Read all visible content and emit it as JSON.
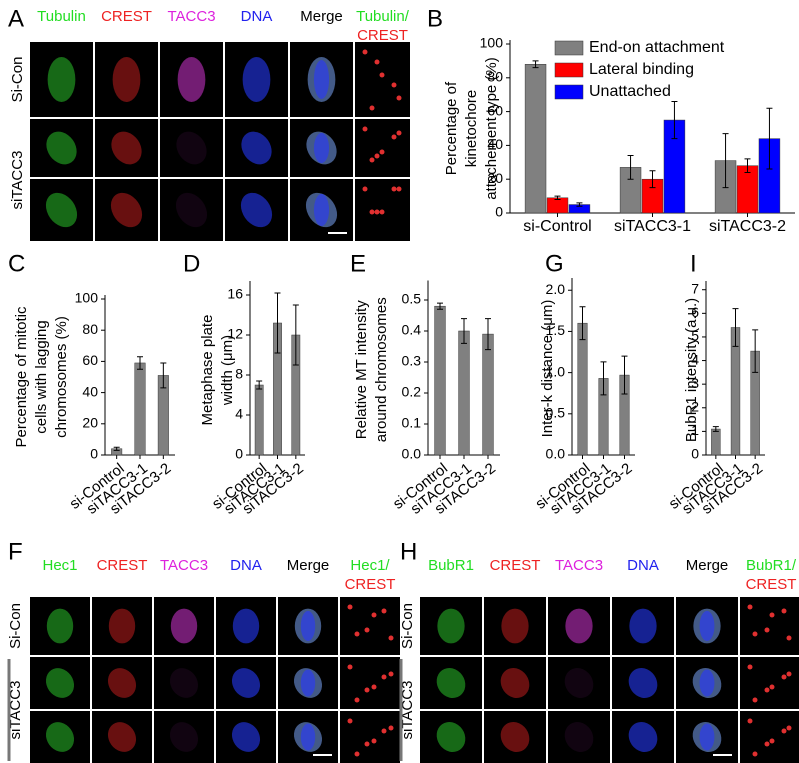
{
  "images": [
    {
      "panel": "A",
      "channels": [
        {
          "text": "Tubulin",
          "color": "#22dd22"
        },
        {
          "text": "CREST",
          "color": "#ee2222"
        },
        {
          "text": "TACC3",
          "color": "#dd22dd"
        },
        {
          "text": "DNA",
          "color": "#2222ee"
        },
        {
          "text": "Merge",
          "color": "#000000"
        }
      ],
      "overlay": [
        {
          "text": "Tubulin/",
          "color": "#22dd22"
        },
        {
          "text": "CREST",
          "color": "#ee2222"
        }
      ],
      "rows": [
        "Si-Con",
        "siTACC3"
      ]
    },
    {
      "panel": "F",
      "channels": [
        {
          "text": "Hec1",
          "color": "#22dd22"
        },
        {
          "text": "CREST",
          "color": "#ee2222"
        },
        {
          "text": "TACC3",
          "color": "#dd22dd"
        },
        {
          "text": "DNA",
          "color": "#2222ee"
        },
        {
          "text": "Merge",
          "color": "#000000"
        }
      ],
      "overlay": [
        {
          "text": "Hec1/",
          "color": "#22dd22"
        },
        {
          "text": "CREST",
          "color": "#ee2222"
        }
      ],
      "rows": [
        "Si-Con",
        "siTACC3"
      ]
    },
    {
      "panel": "H",
      "channels": [
        {
          "text": "BubR1",
          "color": "#22dd22"
        },
        {
          "text": "CREST",
          "color": "#ee2222"
        },
        {
          "text": "TACC3",
          "color": "#dd22dd"
        },
        {
          "text": "DNA",
          "color": "#2222ee"
        },
        {
          "text": "Merge",
          "color": "#000000"
        }
      ],
      "overlay": [
        {
          "text": "BubR1/",
          "color": "#22dd22"
        },
        {
          "text": "CREST",
          "color": "#ee2222"
        }
      ],
      "rows": [
        "Si-Con",
        "siTACC3"
      ]
    }
  ],
  "chart_data": [
    {
      "type": "bar",
      "panel": "B",
      "ylabel": [
        "Percentage of",
        "kinetochore",
        "attachement type (%)"
      ],
      "categories": [
        "si-Control",
        "siTACC3-1",
        "siTACC3-2"
      ],
      "series": [
        {
          "name": "End-on attachment",
          "color": "#808080",
          "values": [
            88,
            27,
            31
          ],
          "errors": [
            2,
            7,
            16
          ]
        },
        {
          "name": "Lateral binding",
          "color": "#ff0000",
          "values": [
            9,
            20,
            28
          ],
          "errors": [
            1,
            5,
            4
          ]
        },
        {
          "name": "Unattached",
          "color": "#0000ff",
          "values": [
            5,
            55,
            44
          ],
          "errors": [
            1,
            11,
            18
          ]
        }
      ],
      "ylim": [
        0,
        100
      ],
      "yticks": [
        0,
        20,
        40,
        60,
        80,
        100
      ]
    },
    {
      "type": "bar",
      "panel": "C",
      "ylabel": [
        "Percentage of mitotic",
        "cells with lagging",
        "chromosomes (%)"
      ],
      "categories": [
        "si-Control",
        "siTACC3-1",
        "siTACC3-2"
      ],
      "color": "#808080",
      "values": [
        4,
        59,
        51
      ],
      "errors": [
        1,
        4,
        8
      ],
      "ylim": [
        0,
        100
      ],
      "yticks": [
        0,
        20,
        40,
        60,
        80,
        100
      ]
    },
    {
      "type": "bar",
      "panel": "D",
      "ylabel": [
        "Metaphase plate",
        "width (μm)"
      ],
      "categories": [
        "si-Control",
        "siTACC3-1",
        "siTACC3-2"
      ],
      "color": "#808080",
      "values": [
        7,
        13.2,
        12
      ],
      "errors": [
        0.4,
        3,
        3
      ],
      "ylim": [
        0,
        17
      ],
      "yticks": [
        0,
        4,
        8,
        12,
        16
      ]
    },
    {
      "type": "bar",
      "panel": "E",
      "ylabel": [
        "Relative MT intensity",
        "around chromosomes"
      ],
      "categories": [
        "si-Control",
        "siTACC3-1",
        "siTACC3-2"
      ],
      "color": "#808080",
      "values": [
        0.48,
        0.4,
        0.39
      ],
      "errors": [
        0.01,
        0.04,
        0.05
      ],
      "ylim": [
        0,
        0.55
      ],
      "yticks": [
        {
          "value": 0,
          "label": "0.0"
        },
        0.1,
        0.2,
        0.3,
        0.4,
        0.5
      ]
    },
    {
      "type": "bar",
      "panel": "G",
      "ylabel": [
        "Inter-k distance (μm)"
      ],
      "categories": [
        "si-Control",
        "siTACC3-1",
        "siTACC3-2"
      ],
      "color": "#808080",
      "values": [
        1.6,
        0.93,
        0.97
      ],
      "errors": [
        0.2,
        0.2,
        0.23
      ],
      "ylim": [
        0,
        2.1
      ],
      "yticks": [
        {
          "value": 0,
          "label": "0.0"
        },
        0.5,
        {
          "value": 1,
          "label": "1.0"
        },
        1.5,
        {
          "value": 2,
          "label": "2.0"
        }
      ]
    },
    {
      "type": "bar",
      "panel": "I",
      "ylabel": [
        "BubR1 intensity (a.u.)"
      ],
      "categories": [
        "si-Control",
        "siTACC3-1",
        "siTACC3-2"
      ],
      "color": "#808080",
      "values": [
        1.1,
        5.4,
        4.4
      ],
      "errors": [
        0.1,
        0.8,
        0.9
      ],
      "ylim": [
        0,
        7.2
      ],
      "yticks": [
        0,
        1,
        2,
        3,
        4,
        5,
        6,
        7
      ]
    }
  ]
}
